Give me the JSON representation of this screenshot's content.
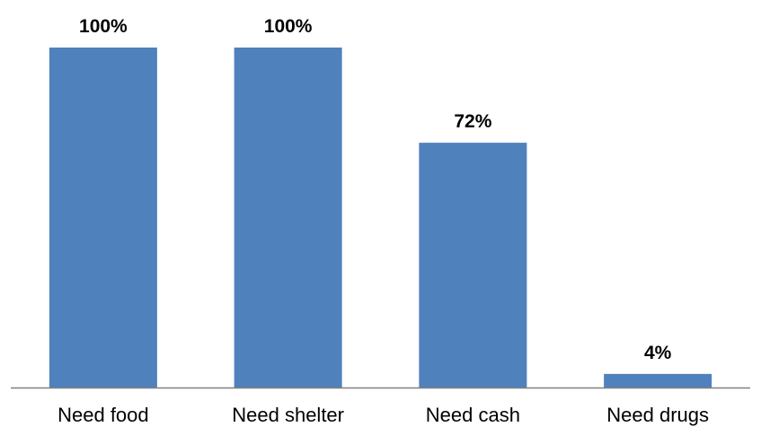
{
  "chart_data": {
    "type": "bar",
    "categories": [
      "Need food",
      "Need shelter",
      "Need cash",
      "Need drugs"
    ],
    "values": [
      100,
      100,
      72,
      4
    ],
    "data_labels": [
      "100%",
      "100%",
      "72%",
      "4%"
    ],
    "title": "",
    "xlabel": "",
    "ylabel": "",
    "ylim": [
      0,
      100
    ],
    "grid": false,
    "legend": "none",
    "bar_color": "#4F81BD",
    "axis_color": "#808080"
  }
}
